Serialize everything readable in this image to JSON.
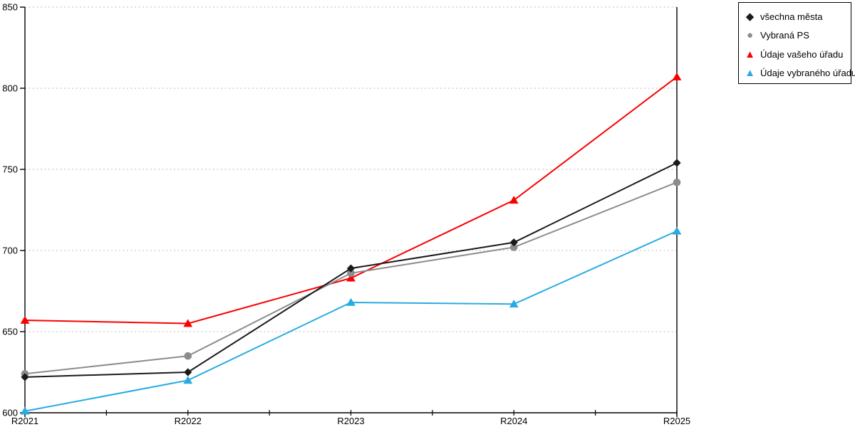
{
  "chart_data": {
    "type": "line",
    "title": "",
    "xlabel": "",
    "ylabel": "",
    "categories": [
      "R2021",
      "R2022",
      "R2023",
      "R2024",
      "R2025"
    ],
    "series": [
      {
        "name": "všechna města",
        "marker": "diamond",
        "color": "#1a1a1a",
        "values": [
          622,
          625,
          689,
          705,
          754
        ]
      },
      {
        "name": "Vybraná PS",
        "marker": "circle",
        "color": "#8c8c8c",
        "values": [
          624,
          635,
          686,
          702,
          742
        ]
      },
      {
        "name": "Údaje vašeho úřadu",
        "marker": "triangle",
        "color": "#fa0000",
        "values": [
          657,
          655,
          683,
          731,
          807
        ]
      },
      {
        "name": "Údaje vybraného úřadu",
        "marker": "triangle",
        "color": "#29abe2",
        "values": [
          601,
          620,
          668,
          667,
          712
        ]
      }
    ],
    "draw_order": [
      2,
      1,
      0,
      3
    ],
    "ylim": [
      600,
      850
    ],
    "yticks": [
      600,
      650,
      700,
      750,
      800,
      850
    ],
    "grid": "horizontal-dotted",
    "grid_color": "#c8c8c8",
    "axis_color": "#000000",
    "legend_position": "top-right"
  }
}
